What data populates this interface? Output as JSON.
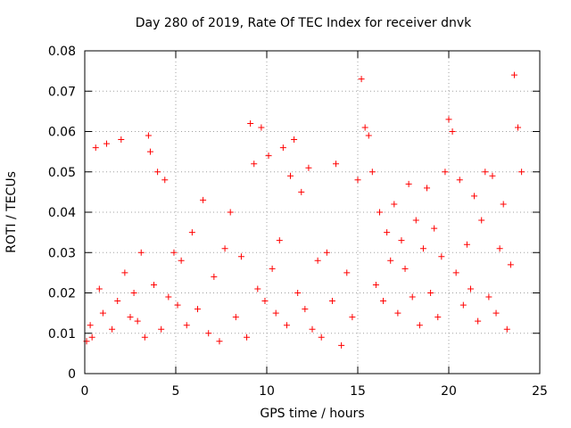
{
  "chart_data": {
    "type": "scatter",
    "title": "Day 280 of 2019, Rate Of TEC Index for receiver dnvk",
    "xlabel": "GPS time / hours",
    "ylabel": "ROTI / TECUs",
    "xlim": [
      0,
      25
    ],
    "ylim": [
      0,
      0.08
    ],
    "x_ticks": [
      "0",
      "5",
      "10",
      "15",
      "20",
      "25"
    ],
    "y_ticks": [
      "0",
      "0.01",
      "0.02",
      "0.03",
      "0.04",
      "0.05",
      "0.06",
      "0.07",
      "0.08"
    ],
    "grid": true,
    "marker": "+",
    "color": "#ff0000",
    "series": [
      {
        "name": "ROTI",
        "x": [
          0.1,
          0.3,
          0.4,
          0.6,
          0.8,
          1.0,
          1.2,
          1.5,
          1.8,
          2.0,
          2.2,
          2.5,
          2.7,
          2.9,
          3.1,
          3.3,
          3.5,
          3.6,
          3.8,
          4.0,
          4.2,
          4.4,
          4.6,
          4.9,
          5.1,
          5.3,
          5.6,
          5.9,
          6.2,
          6.5,
          6.8,
          7.1,
          7.4,
          7.7,
          8.0,
          8.3,
          8.6,
          8.9,
          9.1,
          9.3,
          9.5,
          9.7,
          9.9,
          10.1,
          10.3,
          10.5,
          10.7,
          10.9,
          11.1,
          11.3,
          11.5,
          11.7,
          11.9,
          12.1,
          12.3,
          12.5,
          12.8,
          13.0,
          13.3,
          13.6,
          13.8,
          14.1,
          14.4,
          14.7,
          15.0,
          15.2,
          15.4,
          15.6,
          15.8,
          16.0,
          16.2,
          16.4,
          16.6,
          16.8,
          17.0,
          17.2,
          17.4,
          17.6,
          17.8,
          18.0,
          18.2,
          18.4,
          18.6,
          18.8,
          19.0,
          19.2,
          19.4,
          19.6,
          19.8,
          20.0,
          20.2,
          20.4,
          20.6,
          20.8,
          21.0,
          21.2,
          21.4,
          21.6,
          21.8,
          22.0,
          22.2,
          22.4,
          22.6,
          22.8,
          23.0,
          23.2,
          23.4,
          23.6,
          23.8,
          24.0
        ],
        "y": [
          0.008,
          0.012,
          0.009,
          0.056,
          0.021,
          0.015,
          0.057,
          0.011,
          0.018,
          0.058,
          0.025,
          0.014,
          0.02,
          0.013,
          0.03,
          0.009,
          0.059,
          0.055,
          0.022,
          0.05,
          0.011,
          0.048,
          0.019,
          0.03,
          0.017,
          0.028,
          0.012,
          0.035,
          0.016,
          0.043,
          0.01,
          0.024,
          0.008,
          0.031,
          0.04,
          0.014,
          0.029,
          0.009,
          0.062,
          0.052,
          0.021,
          0.061,
          0.018,
          0.054,
          0.026,
          0.015,
          0.033,
          0.056,
          0.012,
          0.049,
          0.058,
          0.02,
          0.045,
          0.016,
          0.051,
          0.011,
          0.028,
          0.009,
          0.03,
          0.018,
          0.052,
          0.007,
          0.025,
          0.014,
          0.048,
          0.073,
          0.061,
          0.059,
          0.05,
          0.022,
          0.04,
          0.018,
          0.035,
          0.028,
          0.042,
          0.015,
          0.033,
          0.026,
          0.047,
          0.019,
          0.038,
          0.012,
          0.031,
          0.046,
          0.02,
          0.036,
          0.014,
          0.029,
          0.05,
          0.063,
          0.06,
          0.025,
          0.048,
          0.017,
          0.032,
          0.021,
          0.044,
          0.013,
          0.038,
          0.05,
          0.019,
          0.049,
          0.015,
          0.031,
          0.042,
          0.011,
          0.027,
          0.074,
          0.061,
          0.05
        ]
      }
    ]
  }
}
